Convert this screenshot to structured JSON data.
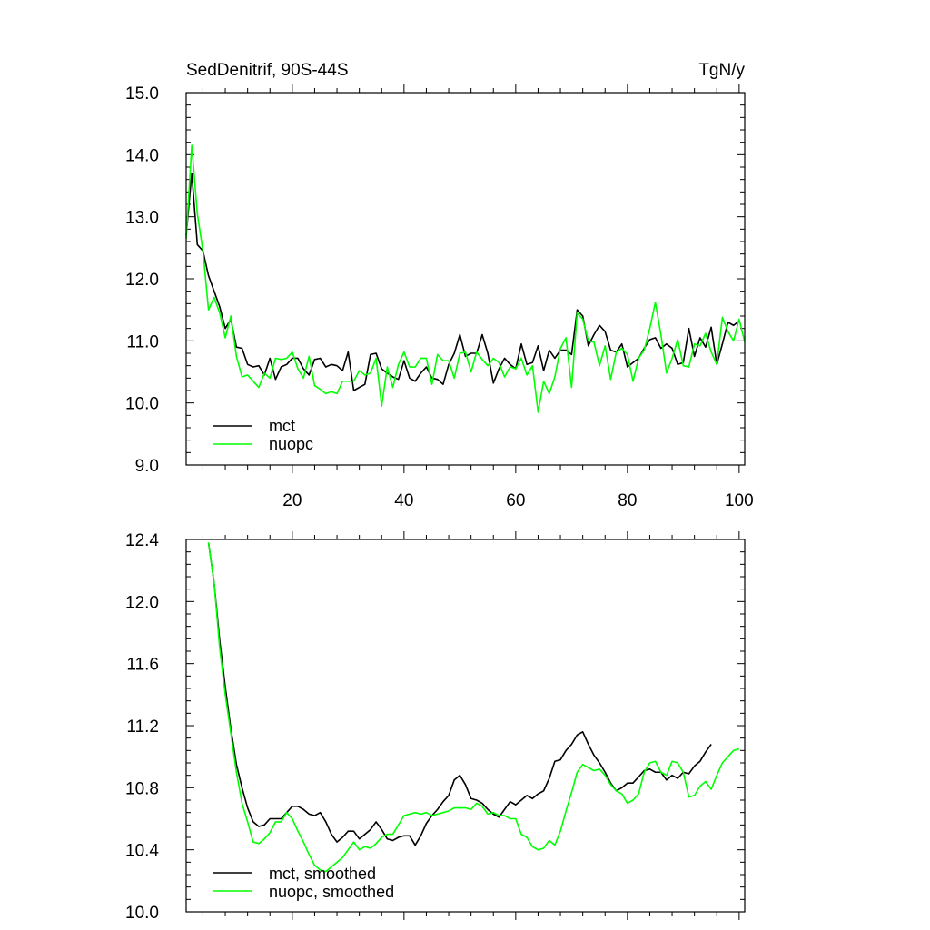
{
  "chart_data": [
    {
      "type": "line",
      "title_left": "SedDenitrif, 90S-44S",
      "title_right": "TgN/y",
      "xlim": [
        1,
        101
      ],
      "ylim": [
        9.0,
        15.0
      ],
      "x_major_ticks": [
        20,
        40,
        60,
        80,
        100
      ],
      "x_tick_labels": [
        "20",
        "40",
        "60",
        "80",
        "100"
      ],
      "y_major_ticks": [
        9.0,
        10.0,
        11.0,
        12.0,
        13.0,
        14.0,
        15.0
      ],
      "y_tick_labels": [
        "9.0",
        "10.0",
        "11.0",
        "12.0",
        "13.0",
        "14.0",
        "15.0"
      ],
      "legend_position": "bottom-left",
      "series": [
        {
          "name": "mct",
          "color": "#000000",
          "x_start": 1,
          "values": [
            12.7,
            13.7,
            12.55,
            12.45,
            12.05,
            11.8,
            11.55,
            11.2,
            11.35,
            10.9,
            10.88,
            10.62,
            10.58,
            10.6,
            10.45,
            10.72,
            10.38,
            10.58,
            10.62,
            10.72,
            10.72,
            10.55,
            10.45,
            10.7,
            10.72,
            10.58,
            10.62,
            10.6,
            10.52,
            10.82,
            10.2,
            10.25,
            10.3,
            10.78,
            10.8,
            10.55,
            10.48,
            10.42,
            10.38,
            10.68,
            10.4,
            10.35,
            10.48,
            10.58,
            10.4,
            10.38,
            10.3,
            10.62,
            10.8,
            11.1,
            10.75,
            10.8,
            10.8,
            11.1,
            10.8,
            10.32,
            10.55,
            10.72,
            10.62,
            10.55,
            10.95,
            10.62,
            10.65,
            10.92,
            10.52,
            10.85,
            10.72,
            10.85,
            10.85,
            10.78,
            11.5,
            11.4,
            10.92,
            11.1,
            11.25,
            11.15,
            10.85,
            10.82,
            10.95,
            10.58,
            10.65,
            10.72,
            10.88,
            11.02,
            11.05,
            10.88,
            10.95,
            10.88,
            10.62,
            10.65,
            11.2,
            10.75,
            11.05,
            10.9,
            11.22,
            10.62,
            10.95,
            11.3,
            11.25,
            11.32
          ]
        },
        {
          "name": "nuopc",
          "color": "#00ff00",
          "x_start": 1,
          "values": [
            12.65,
            14.15,
            13.05,
            12.45,
            11.5,
            11.7,
            11.45,
            11.05,
            11.4,
            10.75,
            10.42,
            10.45,
            10.35,
            10.25,
            10.48,
            10.4,
            10.72,
            10.7,
            10.72,
            10.82,
            10.55,
            10.4,
            10.75,
            10.28,
            10.22,
            10.15,
            10.18,
            10.15,
            10.35,
            10.35,
            10.35,
            10.52,
            10.45,
            10.48,
            10.72,
            9.95,
            10.58,
            10.25,
            10.62,
            10.82,
            10.58,
            10.58,
            10.72,
            10.72,
            10.3,
            10.78,
            10.68,
            10.68,
            10.4,
            10.8,
            10.82,
            10.5,
            10.82,
            10.7,
            10.6,
            10.72,
            10.65,
            10.42,
            10.58,
            10.55,
            10.72,
            10.45,
            10.6,
            9.85,
            10.35,
            10.15,
            10.42,
            10.88,
            11.05,
            10.25,
            11.45,
            11.35,
            11.0,
            10.98,
            10.6,
            10.92,
            10.38,
            10.82,
            10.88,
            10.78,
            10.35,
            10.72,
            10.85,
            11.2,
            11.62,
            11.1,
            10.48,
            10.72,
            11.02,
            10.6,
            10.58,
            10.95,
            10.92,
            11.12,
            10.82,
            10.62,
            11.38,
            11.15,
            11.0,
            11.35,
            10.98
          ]
        }
      ]
    },
    {
      "type": "line",
      "xlim": [
        1,
        101
      ],
      "ylim": [
        10.0,
        12.4
      ],
      "y_major_ticks": [
        10.0,
        10.4,
        10.8,
        11.2,
        11.6,
        12.0,
        12.4
      ],
      "y_tick_labels": [
        "10.0",
        "10.4",
        "10.8",
        "11.2",
        "11.6",
        "12.0",
        "12.4"
      ],
      "x_major_ticks": [
        20,
        40,
        60,
        80,
        100
      ],
      "legend_position": "bottom-left",
      "series": [
        {
          "name": "mct, smoothed",
          "color": "#000000",
          "x_start": 5,
          "values": [
            12.38,
            12.12,
            11.75,
            11.45,
            11.18,
            10.95,
            10.8,
            10.67,
            10.58,
            10.55,
            10.56,
            10.6,
            10.6,
            10.6,
            10.64,
            10.68,
            10.68,
            10.66,
            10.63,
            10.62,
            10.64,
            10.58,
            10.5,
            10.45,
            10.48,
            10.52,
            10.52,
            10.47,
            10.5,
            10.53,
            10.58,
            10.53,
            10.47,
            10.46,
            10.48,
            10.49,
            10.49,
            10.43,
            10.49,
            10.57,
            10.62,
            10.66,
            10.71,
            10.75,
            10.85,
            10.88,
            10.82,
            10.73,
            10.72,
            10.7,
            10.66,
            10.63,
            10.61,
            10.66,
            10.71,
            10.69,
            10.72,
            10.75,
            10.73,
            10.76,
            10.78,
            10.86,
            10.97,
            10.98,
            11.04,
            11.08,
            11.14,
            11.16,
            11.08,
            11.01,
            10.96,
            10.9,
            10.83,
            10.78,
            10.8,
            10.83,
            10.83,
            10.87,
            10.91,
            10.92,
            10.9,
            10.9,
            10.85,
            10.88,
            10.86,
            10.9,
            10.89,
            10.94,
            10.97,
            11.03,
            11.08
          ]
        },
        {
          "name": "nuopc, smoothed",
          "color": "#00ff00",
          "x_start": 5,
          "values": [
            12.38,
            12.12,
            11.7,
            11.4,
            11.15,
            10.9,
            10.7,
            10.58,
            10.45,
            10.44,
            10.47,
            10.51,
            10.58,
            10.58,
            10.64,
            10.6,
            10.52,
            10.45,
            10.37,
            10.3,
            10.27,
            10.26,
            10.29,
            10.32,
            10.35,
            10.4,
            10.45,
            10.4,
            10.42,
            10.41,
            10.44,
            10.48,
            10.5,
            10.5,
            10.56,
            10.62,
            10.63,
            10.64,
            10.63,
            10.64,
            10.62,
            10.63,
            10.64,
            10.65,
            10.67,
            10.67,
            10.67,
            10.66,
            10.7,
            10.68,
            10.63,
            10.64,
            10.62,
            10.62,
            10.6,
            10.6,
            10.5,
            10.48,
            10.42,
            10.4,
            10.41,
            10.46,
            10.43,
            10.52,
            10.65,
            10.77,
            10.9,
            10.95,
            10.93,
            10.91,
            10.92,
            10.88,
            10.82,
            10.78,
            10.76,
            10.7,
            10.72,
            10.76,
            10.9,
            10.96,
            10.97,
            10.9,
            10.88,
            10.97,
            10.96,
            10.9,
            10.74,
            10.75,
            10.81,
            10.84,
            10.79,
            10.88,
            10.96,
            11.0,
            11.04,
            11.05
          ]
        }
      ]
    }
  ]
}
